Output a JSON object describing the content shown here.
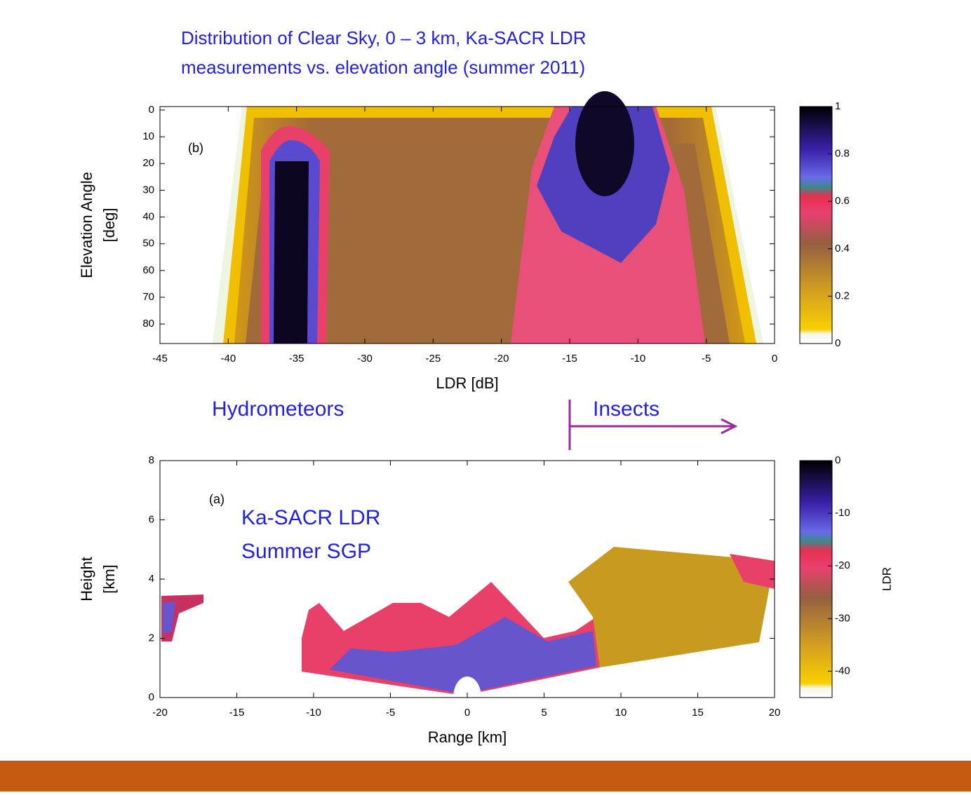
{
  "title": [
    "Distribution of Clear Sky, 0 – 3 km,  Ka-SACR LDR",
    "measurements vs. elevation angle (summer 2011)"
  ],
  "annotations": {
    "hydrometeors": "Hydrometeors",
    "insects": "Insects"
  },
  "chart_data": [
    {
      "type": "heatmap",
      "panel_label": "(b)",
      "xlabel": "LDR [dB]",
      "ylabel": [
        "Elevation Angle",
        "[deg]"
      ],
      "xlim": [
        -45,
        0
      ],
      "xticks": [
        -45,
        -40,
        -35,
        -30,
        -25,
        -20,
        -15,
        -10,
        -5,
        0
      ],
      "ylim": [
        87.3,
        -1.3
      ],
      "yticks": [
        0,
        10,
        20,
        30,
        40,
        50,
        60,
        70,
        80
      ],
      "colorbar": {
        "lim": [
          0,
          1
        ],
        "ticks": [
          0,
          0.2,
          0.4,
          0.6,
          0.8,
          1
        ]
      }
    },
    {
      "type": "heatmap",
      "panel_label": "(a)",
      "annotation": [
        "Ka-SACR LDR",
        "Summer SGP"
      ],
      "xlabel": "Range [km]",
      "ylabel": [
        "Height",
        "[km]"
      ],
      "xlim": [
        -20,
        20
      ],
      "xticks": [
        -20,
        -15,
        -10,
        -5,
        0,
        5,
        10,
        15,
        20
      ],
      "ylim": [
        0,
        8
      ],
      "yticks": [
        0,
        2,
        4,
        6,
        8
      ],
      "colorbar": {
        "label": "LDR",
        "lim": [
          -45,
          0
        ],
        "ticks": [
          0,
          -10,
          -20,
          -30,
          -40
        ]
      }
    }
  ]
}
